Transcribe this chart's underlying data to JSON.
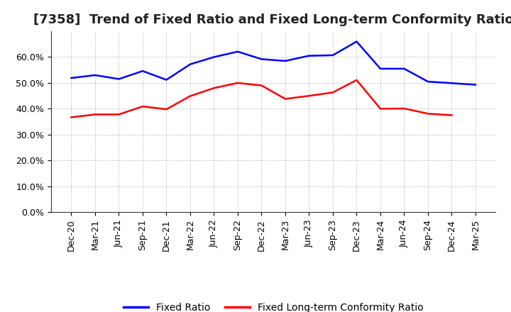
{
  "title": "[7358]  Trend of Fixed Ratio and Fixed Long-term Conformity Ratio",
  "x_labels": [
    "Dec-20",
    "Mar-21",
    "Jun-21",
    "Sep-21",
    "Dec-21",
    "Mar-22",
    "Jun-22",
    "Sep-22",
    "Dec-22",
    "Mar-23",
    "Jun-23",
    "Sep-23",
    "Dec-23",
    "Mar-24",
    "Jun-24",
    "Sep-24",
    "Dec-24",
    "Mar-25"
  ],
  "fixed_ratio": [
    0.519,
    0.53,
    0.515,
    0.546,
    0.512,
    0.572,
    0.6,
    0.621,
    0.592,
    0.585,
    0.605,
    0.607,
    0.66,
    0.555,
    0.555,
    0.505,
    0.499,
    0.493
  ],
  "fixed_lt_ratio": [
    0.367,
    0.378,
    0.378,
    0.409,
    0.398,
    0.449,
    0.48,
    0.5,
    0.49,
    0.438,
    0.45,
    0.463,
    0.511,
    0.4,
    0.401,
    0.381,
    0.375,
    null
  ],
  "fixed_ratio_color": "#0000FF",
  "fixed_lt_ratio_color": "#FF0000",
  "ylim": [
    0.0,
    0.7
  ],
  "yticks": [
    0.0,
    0.1,
    0.2,
    0.3,
    0.4,
    0.5,
    0.6
  ],
  "legend_labels": [
    "Fixed Ratio",
    "Fixed Long-term Conformity Ratio"
  ],
  "background_color": "#FFFFFF",
  "plot_bg_color": "#FFFFFF",
  "grid_color": "#AAAAAA",
  "title_fontsize": 13,
  "tick_fontsize": 9,
  "legend_fontsize": 10
}
